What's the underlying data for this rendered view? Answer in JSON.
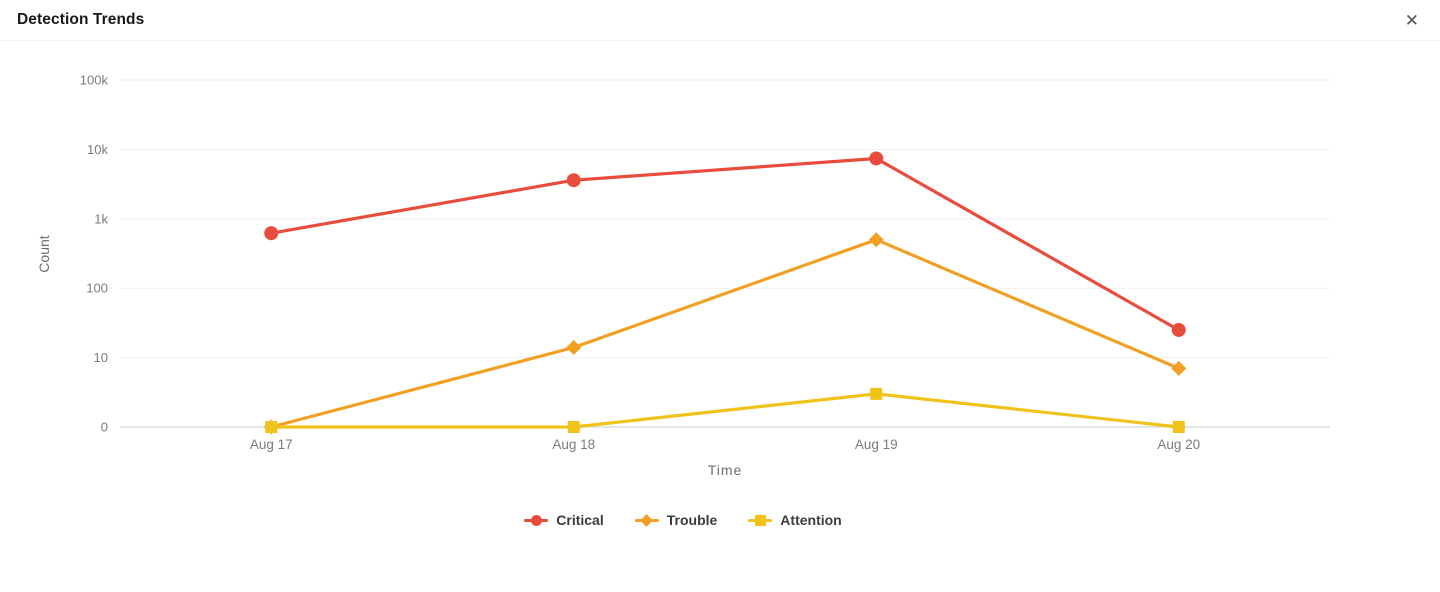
{
  "header": {
    "title": "Detection Trends",
    "close_glyph": "✕"
  },
  "chart_data": {
    "type": "line",
    "title": "Detection Trends",
    "xlabel": "Time",
    "ylabel": "Count",
    "categories": [
      "Aug 17",
      "Aug 18",
      "Aug 19",
      "Aug 20"
    ],
    "y_axis": {
      "scale": "log",
      "tick_labels_top_to_bottom": [
        "100k",
        "10k",
        "1k",
        "100",
        "10",
        "0"
      ],
      "tick_values_top_to_bottom": [
        100000,
        10000,
        1000,
        100,
        10,
        0
      ]
    },
    "grid": true,
    "legend_position": "bottom",
    "series": [
      {
        "name": "Critical",
        "marker": "circle",
        "color": "#E74C3C",
        "values": [
          620,
          3600,
          7400,
          25
        ]
      },
      {
        "name": "Trouble",
        "marker": "diamond",
        "color": "#F2A024",
        "values": [
          0,
          14,
          500,
          7
        ]
      },
      {
        "name": "Attention",
        "marker": "square",
        "color": "#EFC31A",
        "values": [
          0,
          0,
          3,
          0
        ]
      }
    ]
  },
  "colors": {
    "grid_line": "#EFEFEF",
    "axis_line": "#D9DDE2",
    "tick_text": "#7B7B7B",
    "axis_title_text": "#6E6E6E",
    "legend_text": "#3C3C3C"
  }
}
